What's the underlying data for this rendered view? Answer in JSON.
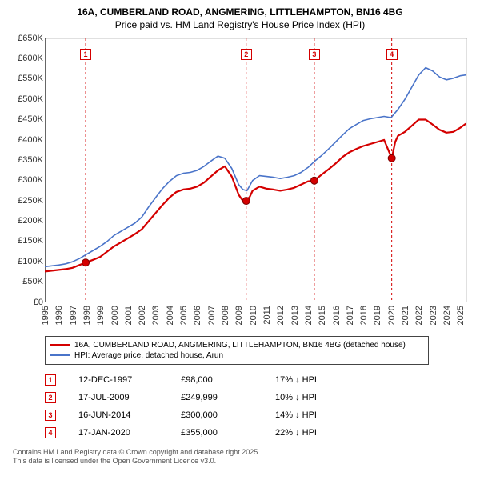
{
  "title_line1": "16A, CUMBERLAND ROAD, ANGMERING, LITTLEHAMPTON, BN16 4BG",
  "title_line2": "Price paid vs. HM Land Registry's House Price Index (HPI)",
  "chart": {
    "type": "line",
    "background_color": "#ffffff",
    "grid_color": "#000000",
    "axis_color": "#000000",
    "label_fontsize": 11,
    "x": {
      "min": 1995,
      "max": 2025.5,
      "ticks": [
        1995,
        1996,
        1997,
        1998,
        1999,
        2000,
        2001,
        2002,
        2003,
        2004,
        2005,
        2006,
        2007,
        2008,
        2009,
        2010,
        2011,
        2012,
        2013,
        2014,
        2015,
        2016,
        2017,
        2018,
        2019,
        2020,
        2021,
        2022,
        2023,
        2024,
        2025
      ]
    },
    "y": {
      "min": 0,
      "max": 650000,
      "tick_step": 50000,
      "tick_labels": [
        "£0",
        "£50K",
        "£100K",
        "£150K",
        "£200K",
        "£250K",
        "£300K",
        "£350K",
        "£400K",
        "£450K",
        "£500K",
        "£550K",
        "£600K",
        "£650K"
      ]
    },
    "series": [
      {
        "id": "price_paid",
        "label": "16A, CUMBERLAND ROAD, ANGMERING, LITTLEHAMPTON, BN16 4BG (detached house)",
        "color": "#d40000",
        "line_width": 2.2,
        "data": [
          [
            1995,
            76000
          ],
          [
            1995.5,
            78000
          ],
          [
            1996,
            80000
          ],
          [
            1996.5,
            82000
          ],
          [
            1997,
            85000
          ],
          [
            1997.5,
            92000
          ],
          [
            1997.95,
            98000
          ],
          [
            1998.5,
            105000
          ],
          [
            1999,
            112000
          ],
          [
            1999.5,
            125000
          ],
          [
            2000,
            138000
          ],
          [
            2000.5,
            148000
          ],
          [
            2001,
            158000
          ],
          [
            2001.5,
            168000
          ],
          [
            2002,
            180000
          ],
          [
            2002.5,
            200000
          ],
          [
            2003,
            220000
          ],
          [
            2003.5,
            240000
          ],
          [
            2004,
            258000
          ],
          [
            2004.5,
            272000
          ],
          [
            2005,
            278000
          ],
          [
            2005.5,
            280000
          ],
          [
            2006,
            285000
          ],
          [
            2006.5,
            295000
          ],
          [
            2007,
            310000
          ],
          [
            2007.5,
            325000
          ],
          [
            2008,
            335000
          ],
          [
            2008.5,
            310000
          ],
          [
            2009,
            265000
          ],
          [
            2009.3,
            250000
          ],
          [
            2009.54,
            249999
          ],
          [
            2009.8,
            260000
          ],
          [
            2010,
            275000
          ],
          [
            2010.5,
            285000
          ],
          [
            2011,
            280000
          ],
          [
            2011.5,
            278000
          ],
          [
            2012,
            275000
          ],
          [
            2012.5,
            278000
          ],
          [
            2013,
            282000
          ],
          [
            2013.5,
            290000
          ],
          [
            2014,
            298000
          ],
          [
            2014.46,
            300000
          ],
          [
            2015,
            315000
          ],
          [
            2015.5,
            328000
          ],
          [
            2016,
            342000
          ],
          [
            2016.5,
            358000
          ],
          [
            2017,
            370000
          ],
          [
            2017.5,
            378000
          ],
          [
            2018,
            385000
          ],
          [
            2018.5,
            390000
          ],
          [
            2019,
            395000
          ],
          [
            2019.5,
            400000
          ],
          [
            2020.05,
            355000
          ],
          [
            2020.3,
            395000
          ],
          [
            2020.5,
            410000
          ],
          [
            2021,
            420000
          ],
          [
            2021.5,
            435000
          ],
          [
            2022,
            450000
          ],
          [
            2022.5,
            450000
          ],
          [
            2023,
            438000
          ],
          [
            2023.5,
            425000
          ],
          [
            2024,
            418000
          ],
          [
            2024.5,
            420000
          ],
          [
            2025,
            430000
          ],
          [
            2025.4,
            440000
          ]
        ],
        "markers": [
          {
            "n": 1,
            "x": 1997.95,
            "y": 98000
          },
          {
            "n": 2,
            "x": 2009.54,
            "y": 249999
          },
          {
            "n": 3,
            "x": 2014.46,
            "y": 300000
          },
          {
            "n": 4,
            "x": 2020.05,
            "y": 355000
          }
        ]
      },
      {
        "id": "hpi",
        "label": "HPI: Average price, detached house, Arun",
        "color": "#4a74c9",
        "line_width": 1.6,
        "data": [
          [
            1995,
            88000
          ],
          [
            1995.5,
            90000
          ],
          [
            1996,
            92000
          ],
          [
            1996.5,
            95000
          ],
          [
            1997,
            100000
          ],
          [
            1997.5,
            108000
          ],
          [
            1998,
            118000
          ],
          [
            1998.5,
            128000
          ],
          [
            1999,
            138000
          ],
          [
            1999.5,
            150000
          ],
          [
            2000,
            165000
          ],
          [
            2000.5,
            175000
          ],
          [
            2001,
            185000
          ],
          [
            2001.5,
            195000
          ],
          [
            2002,
            210000
          ],
          [
            2002.5,
            235000
          ],
          [
            2003,
            258000
          ],
          [
            2003.5,
            280000
          ],
          [
            2004,
            298000
          ],
          [
            2004.5,
            312000
          ],
          [
            2005,
            318000
          ],
          [
            2005.5,
            320000
          ],
          [
            2006,
            325000
          ],
          [
            2006.5,
            335000
          ],
          [
            2007,
            348000
          ],
          [
            2007.5,
            360000
          ],
          [
            2008,
            355000
          ],
          [
            2008.5,
            330000
          ],
          [
            2009,
            290000
          ],
          [
            2009.3,
            278000
          ],
          [
            2009.6,
            275000
          ],
          [
            2010,
            300000
          ],
          [
            2010.5,
            312000
          ],
          [
            2011,
            310000
          ],
          [
            2011.5,
            308000
          ],
          [
            2012,
            305000
          ],
          [
            2012.5,
            308000
          ],
          [
            2013,
            312000
          ],
          [
            2013.5,
            320000
          ],
          [
            2014,
            332000
          ],
          [
            2014.5,
            348000
          ],
          [
            2015,
            362000
          ],
          [
            2015.5,
            378000
          ],
          [
            2016,
            395000
          ],
          [
            2016.5,
            412000
          ],
          [
            2017,
            428000
          ],
          [
            2017.5,
            438000
          ],
          [
            2018,
            448000
          ],
          [
            2018.5,
            452000
          ],
          [
            2019,
            455000
          ],
          [
            2019.5,
            458000
          ],
          [
            2020,
            455000
          ],
          [
            2020.5,
            475000
          ],
          [
            2021,
            500000
          ],
          [
            2021.5,
            530000
          ],
          [
            2022,
            560000
          ],
          [
            2022.5,
            578000
          ],
          [
            2023,
            570000
          ],
          [
            2023.5,
            555000
          ],
          [
            2024,
            548000
          ],
          [
            2024.5,
            552000
          ],
          [
            2025,
            558000
          ],
          [
            2025.4,
            560000
          ]
        ]
      }
    ],
    "sale_lines": {
      "color": "#d40000",
      "dash": "3,3",
      "marker_box_top_y": 610000
    },
    "marker_dot": {
      "radius": 4.5,
      "fill": "#d40000",
      "stroke": "#7a0000"
    }
  },
  "legend": {
    "border_color": "#444444"
  },
  "sales": [
    {
      "n": 1,
      "date": "12-DEC-1997",
      "price": "£98,000",
      "diff": "17% ↓ HPI",
      "color": "#d40000"
    },
    {
      "n": 2,
      "date": "17-JUL-2009",
      "price": "£249,999",
      "diff": "10% ↓ HPI",
      "color": "#d40000"
    },
    {
      "n": 3,
      "date": "16-JUN-2014",
      "price": "£300,000",
      "diff": "14% ↓ HPI",
      "color": "#d40000"
    },
    {
      "n": 4,
      "date": "17-JAN-2020",
      "price": "£355,000",
      "diff": "22% ↓ HPI",
      "color": "#d40000"
    }
  ],
  "footer_line1": "Contains HM Land Registry data © Crown copyright and database right 2025.",
  "footer_line2": "This data is licensed under the Open Government Licence v3.0."
}
